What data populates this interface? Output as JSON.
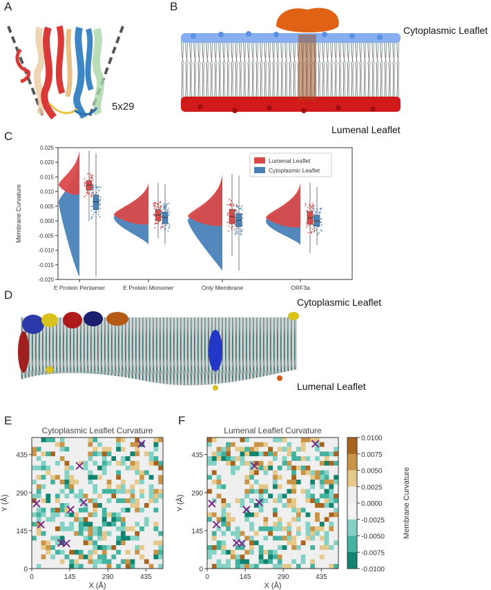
{
  "panels": {
    "a": "A",
    "b": "B",
    "c": "C",
    "d": "D",
    "e": "E",
    "f": "F"
  },
  "panel_a": {
    "label": "5x29"
  },
  "panel_b": {
    "top": "Cytoplasmic Leaflet",
    "bottom": "Lumenal Leaflet"
  },
  "panel_d": {
    "top": "Cytoplasmic Leaflet",
    "bottom": "Lumenal Leaflet"
  },
  "chart_data": [
    {
      "type": "violin",
      "title": "",
      "ylabel": "Membrane Curvature",
      "xlabel": "",
      "ylim": [
        -0.02,
        0.025
      ],
      "yticks": [
        -0.02,
        -0.015,
        -0.01,
        -0.005,
        0.0,
        0.005,
        0.01,
        0.015,
        0.02,
        0.025
      ],
      "ytick_labels": [
        "-0.020",
        "-0.015",
        "-0.010",
        "-0.005",
        "0.000",
        "0.005",
        "0.010",
        "0.015",
        "0.020",
        "0.025"
      ],
      "categories": [
        "E Protein Pentamer",
        "E Protein Monomer",
        "Only Membrane",
        "ORF3a"
      ],
      "legend": {
        "position": "top-right",
        "entries": [
          "Lumenal Leaflet",
          "Cytoplasmic Leaflet"
        ]
      },
      "series": [
        {
          "name": "Lumenal Leaflet",
          "color": "#d94a4a",
          "medians": [
            0.0122,
            0.002,
            0.0015,
            0.001
          ],
          "q1": [
            0.0105,
            0.0,
            -0.001,
            -0.0012
          ],
          "q3": [
            0.0138,
            0.0038,
            0.004,
            0.0032
          ],
          "min": [
            0.0,
            -0.006,
            -0.012,
            -0.011
          ],
          "max": [
            0.024,
            0.013,
            0.016,
            0.013
          ]
        },
        {
          "name": "Cytoplasmic Leaflet",
          "color": "#4a82b8",
          "medians": [
            0.0065,
            0.0012,
            0.0002,
            0.0
          ],
          "q1": [
            0.0038,
            -0.001,
            -0.002,
            -0.0018
          ],
          "q3": [
            0.0088,
            0.003,
            0.0025,
            0.002
          ],
          "min": [
            -0.019,
            -0.008,
            -0.017,
            -0.0082
          ],
          "max": [
            0.023,
            0.0125,
            0.0155,
            0.0115
          ]
        }
      ]
    },
    {
      "type": "heatmap",
      "title": "Cytoplasmic Leaflet Curvature",
      "xlabel": "X (Å)",
      "ylabel": "Y (Å)",
      "xticks": [
        "0",
        "145",
        "290",
        "435"
      ],
      "yticks": [
        "0",
        "145",
        "290",
        "435"
      ],
      "markers": [
        [
          418,
          476
        ],
        [
          182,
          392
        ],
        [
          18,
          248
        ],
        [
          198,
          252
        ],
        [
          148,
          225
        ],
        [
          35,
          168
        ],
        [
          112,
          98
        ],
        [
          132,
          96
        ]
      ]
    },
    {
      "type": "heatmap",
      "title": "Lumenal Leaflet Curvature",
      "xlabel": "X (Å)",
      "ylabel": "Y (Å)",
      "xticks": [
        "0",
        "145",
        "290",
        "435"
      ],
      "yticks": [
        "0",
        "145",
        "290",
        "435"
      ],
      "markers": [
        [
          412,
          476
        ],
        [
          180,
          392
        ],
        [
          18,
          248
        ],
        [
          198,
          252
        ],
        [
          150,
          225
        ],
        [
          35,
          168
        ],
        [
          112,
          98
        ],
        [
          132,
          96
        ]
      ]
    }
  ],
  "colorbar": {
    "label": "Membrane Curvature",
    "ticks": [
      "0.0100",
      "0.0075",
      "0.0050",
      "0.0025",
      "0.0000",
      "-0.0025",
      "-0.0050",
      "-0.0075",
      "-0.0100"
    ],
    "colors": [
      "#a8631e",
      "#c99447",
      "#e6c98a",
      "#efefef",
      "#f3f3f3",
      "#84d1c5",
      "#43b39f",
      "#118470"
    ]
  }
}
